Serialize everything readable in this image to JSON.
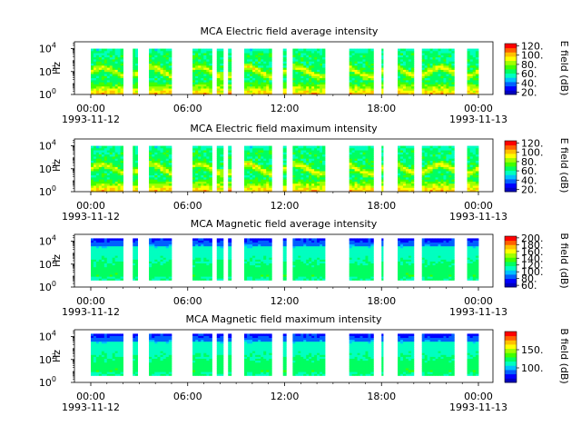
{
  "colors": {
    "colormap": [
      "#0000c0",
      "#0000ff",
      "#0060ff",
      "#00c0ff",
      "#00ffc0",
      "#00ff60",
      "#40ff00",
      "#a0ff00",
      "#ffff00",
      "#ffc000",
      "#ff6000",
      "#ff0000"
    ],
    "axes": "#000000",
    "background": "#ffffff"
  },
  "chart_data": [
    {
      "type": "heatmap",
      "title": "MCA  Electric field average intensity",
      "ylabel": "Hz",
      "y_scale": "log",
      "y_ticks": [
        {
          "base": "10",
          "exp": "0"
        },
        {
          "base": "10",
          "exp": "2"
        },
        {
          "base": "10",
          "exp": "4"
        }
      ],
      "x_ticks": [
        "00:00",
        "06:00",
        "12:00",
        "18:00",
        "00:00"
      ],
      "x_dates": [
        "1993-11-12",
        "1993-11-13"
      ],
      "colorbar": {
        "label": "E field (dB)",
        "range": [
          15,
          125
        ],
        "ticks": [
          "20.",
          "40.",
          "60.",
          "80.",
          "100.",
          "120."
        ]
      },
      "data_intervals_hours": [
        [
          0.0,
          2.0
        ],
        [
          2.6,
          2.9
        ],
        [
          3.6,
          5.0
        ],
        [
          6.3,
          7.5
        ],
        [
          7.8,
          8.2
        ],
        [
          8.5,
          8.7
        ],
        [
          9.5,
          11.2
        ],
        [
          11.9,
          12.1
        ],
        [
          12.5,
          14.5
        ],
        [
          16.0,
          17.5
        ],
        [
          18.0,
          18.1
        ],
        [
          19.0,
          20.0
        ],
        [
          20.5,
          22.5
        ],
        [
          23.3,
          24.0
        ]
      ],
      "spectrum_shape": "electric"
    },
    {
      "type": "heatmap",
      "title": "MCA  Electric field maximum intensity",
      "ylabel": "Hz",
      "y_scale": "log",
      "y_ticks": [
        {
          "base": "10",
          "exp": "0"
        },
        {
          "base": "10",
          "exp": "2"
        },
        {
          "base": "10",
          "exp": "4"
        }
      ],
      "x_ticks": [
        "00:00",
        "06:00",
        "12:00",
        "18:00",
        "00:00"
      ],
      "x_dates": [
        "1993-11-12",
        "1993-11-13"
      ],
      "colorbar": {
        "label": "E field (dB)",
        "range": [
          15,
          125
        ],
        "ticks": [
          "20.",
          "40.",
          "60.",
          "80.",
          "100.",
          "120."
        ]
      },
      "data_intervals_hours": [
        [
          0.0,
          2.0
        ],
        [
          2.6,
          2.9
        ],
        [
          3.6,
          5.0
        ],
        [
          6.3,
          7.5
        ],
        [
          7.8,
          8.2
        ],
        [
          8.5,
          8.7
        ],
        [
          9.5,
          11.2
        ],
        [
          11.9,
          12.1
        ],
        [
          12.5,
          14.5
        ],
        [
          16.0,
          17.5
        ],
        [
          18.0,
          18.1
        ],
        [
          19.0,
          20.0
        ],
        [
          20.5,
          22.5
        ],
        [
          23.3,
          24.0
        ]
      ],
      "spectrum_shape": "electric"
    },
    {
      "type": "heatmap",
      "title": "MCA  Magnetic field average intensity",
      "ylabel": "Hz",
      "y_scale": "log",
      "y_ticks": [
        {
          "base": "10",
          "exp": "0"
        },
        {
          "base": "10",
          "exp": "2"
        },
        {
          "base": "10",
          "exp": "4"
        }
      ],
      "x_ticks": [
        "00:00",
        "06:00",
        "12:00",
        "18:00",
        "00:00"
      ],
      "x_dates": [
        "1993-11-12",
        "1993-11-13"
      ],
      "colorbar": {
        "label": "B field (dB)",
        "range": [
          55,
          205
        ],
        "ticks": [
          "60.",
          "80.",
          "100.",
          "120.",
          "140.",
          "160.",
          "180.",
          "200."
        ]
      },
      "data_intervals_hours": [
        [
          0.0,
          2.0
        ],
        [
          2.6,
          2.9
        ],
        [
          3.6,
          5.0
        ],
        [
          6.3,
          7.5
        ],
        [
          7.8,
          8.2
        ],
        [
          8.5,
          8.7
        ],
        [
          9.5,
          11.2
        ],
        [
          11.9,
          12.1
        ],
        [
          12.5,
          14.5
        ],
        [
          16.0,
          17.5
        ],
        [
          18.0,
          18.1
        ],
        [
          19.0,
          20.0
        ],
        [
          20.5,
          22.5
        ],
        [
          23.3,
          24.0
        ]
      ],
      "spectrum_shape": "magnetic"
    },
    {
      "type": "heatmap",
      "title": "MCA  Magnetic field maximum intensity",
      "ylabel": "Hz",
      "y_scale": "log",
      "y_ticks": [
        {
          "base": "10",
          "exp": "0"
        },
        {
          "base": "10",
          "exp": "2"
        },
        {
          "base": "10",
          "exp": "4"
        }
      ],
      "x_ticks": [
        "00:00",
        "06:00",
        "12:00",
        "18:00",
        "00:00"
      ],
      "x_dates": [
        "1993-11-12",
        "1993-11-13"
      ],
      "colorbar": {
        "label": "B field (dB)",
        "range": [
          60,
          200
        ],
        "ticks": [
          "100.",
          "150."
        ]
      },
      "data_intervals_hours": [
        [
          0.0,
          2.0
        ],
        [
          2.6,
          2.9
        ],
        [
          3.6,
          5.0
        ],
        [
          6.3,
          7.5
        ],
        [
          7.8,
          8.2
        ],
        [
          8.5,
          8.7
        ],
        [
          9.5,
          11.2
        ],
        [
          11.9,
          12.1
        ],
        [
          12.5,
          14.5
        ],
        [
          16.0,
          17.5
        ],
        [
          18.0,
          18.1
        ],
        [
          19.0,
          20.0
        ],
        [
          20.5,
          22.5
        ],
        [
          23.3,
          24.0
        ]
      ],
      "spectrum_shape": "magnetic"
    }
  ]
}
